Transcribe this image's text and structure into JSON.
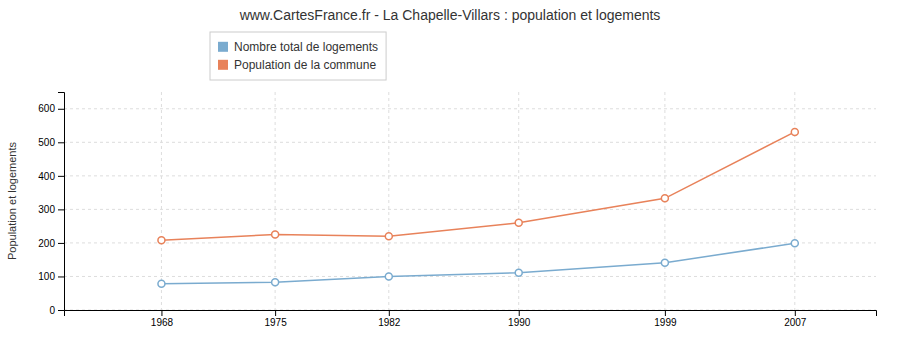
{
  "chart_data": {
    "type": "line",
    "title": "www.CartesFrance.fr - La Chapelle-Villars : population et logements",
    "ylabel": "Population et logements",
    "x": [
      1968,
      1975,
      1982,
      1990,
      1999,
      2007
    ],
    "xlim": [
      1962,
      2012
    ],
    "xticks": [
      1968,
      1975,
      1982,
      1990,
      1999,
      2007
    ],
    "ylim": [
      0,
      650
    ],
    "yticks": [
      0,
      100,
      200,
      300,
      400,
      500,
      600
    ],
    "grid": true,
    "legend": "top",
    "marker": "circle",
    "series": [
      {
        "name": "Nombre total de logements",
        "color": "#7aabcf",
        "values": [
          78,
          83,
          100,
          111,
          141,
          199
        ]
      },
      {
        "name": "Population de la commune",
        "color": "#e8825a",
        "values": [
          208,
          225,
          220,
          260,
          333,
          531
        ]
      }
    ]
  }
}
